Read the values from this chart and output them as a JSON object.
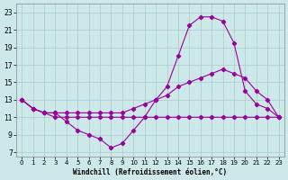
{
  "xlabel": "Windchill (Refroidissement éolien,°C)",
  "xlim": [
    -0.5,
    23.5
  ],
  "ylim": [
    6.5,
    24
  ],
  "xticks": [
    0,
    1,
    2,
    3,
    4,
    5,
    6,
    7,
    8,
    9,
    10,
    11,
    12,
    13,
    14,
    15,
    16,
    17,
    18,
    19,
    20,
    21,
    22,
    23
  ],
  "yticks": [
    7,
    9,
    11,
    13,
    15,
    17,
    19,
    21,
    23
  ],
  "bg_color": "#cce8e8",
  "line_color": "#990099",
  "grid_color": "#aacccc",
  "series": [
    {
      "x": [
        0,
        1,
        2,
        3,
        4,
        5,
        6,
        7,
        8,
        9,
        10,
        11,
        12,
        13,
        14,
        15,
        16,
        17,
        18,
        19,
        20,
        21,
        22,
        23
      ],
      "y": [
        13,
        12,
        11.5,
        11.5,
        10.5,
        9.5,
        9.0,
        8.5,
        7.5,
        8.0,
        9.5,
        11.0,
        13.0,
        14.5,
        18.0,
        21.5,
        22.5,
        22.5,
        22.0,
        19.5,
        14.0,
        12.5,
        12.0,
        11.0
      ]
    },
    {
      "x": [
        0,
        1,
        2,
        3,
        4,
        5,
        6,
        7,
        8,
        9,
        10,
        11,
        12,
        13,
        14,
        15,
        16,
        17,
        18,
        19,
        20,
        21,
        22,
        23
      ],
      "y": [
        13,
        12,
        11.5,
        11.5,
        11.5,
        11.5,
        11.5,
        11.5,
        11.5,
        11.5,
        12.0,
        12.5,
        13.0,
        13.5,
        14.5,
        15.0,
        15.5,
        16.0,
        16.5,
        16.0,
        15.5,
        14.0,
        13.0,
        11.0
      ]
    },
    {
      "x": [
        0,
        1,
        2,
        3,
        4,
        5,
        6,
        7,
        8,
        9,
        10,
        11,
        12,
        13,
        14,
        15,
        16,
        17,
        18,
        19,
        20,
        21,
        22,
        23
      ],
      "y": [
        13,
        12,
        11.5,
        11.0,
        11.0,
        11.0,
        11.0,
        11.0,
        11.0,
        11.0,
        11.0,
        11.0,
        11.0,
        11.0,
        11.0,
        11.0,
        11.0,
        11.0,
        11.0,
        11.0,
        11.0,
        11.0,
        11.0,
        11.0
      ]
    }
  ]
}
